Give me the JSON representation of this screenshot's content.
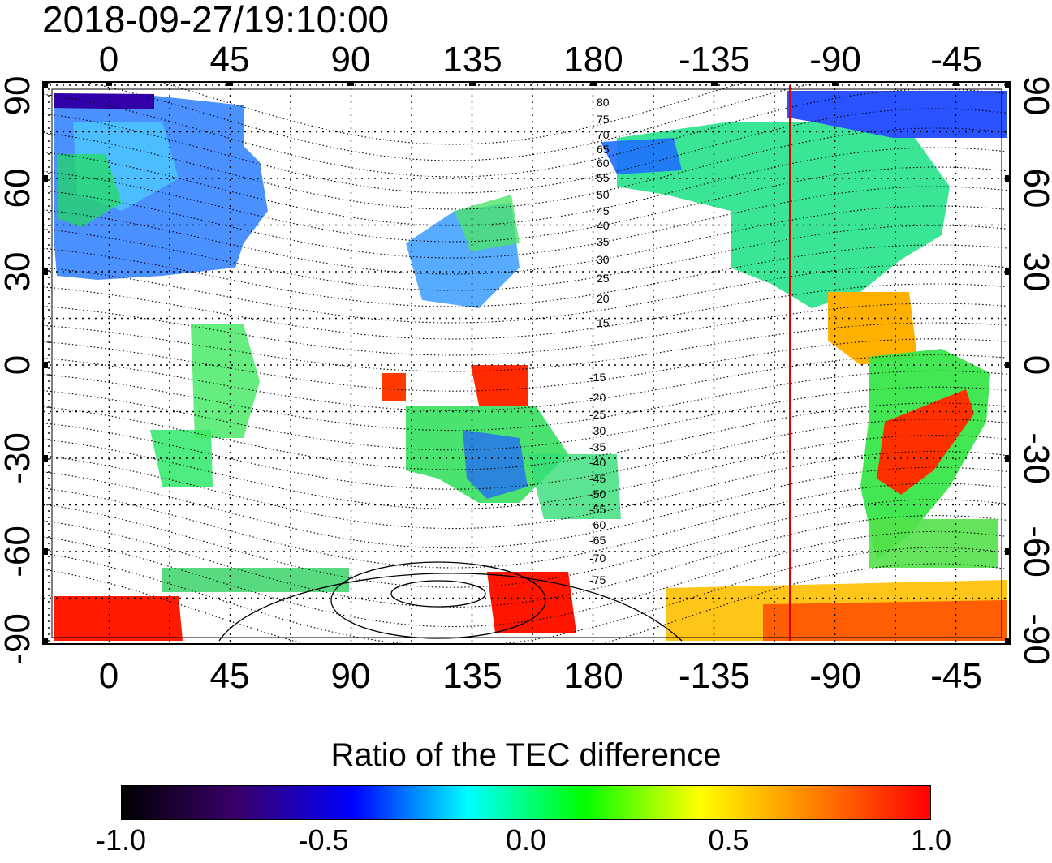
{
  "title": "2018-09-27/19:10:00",
  "map": {
    "lon_ticks": [
      "0",
      "45",
      "90",
      "135",
      "180",
      "-135",
      "-90",
      "-45"
    ],
    "lat_ticks": [
      "90",
      "60",
      "30",
      "0",
      "-30",
      "-60",
      "-90"
    ],
    "maglat_north_labels": [
      "80",
      "75",
      "70",
      "65",
      "60",
      "55",
      "50",
      "45",
      "40",
      "35",
      "30",
      "25",
      "20",
      "15"
    ],
    "maglat_south_labels": [
      "-15",
      "-20",
      "-25",
      "-30",
      "-35",
      "-40",
      "-45",
      "-50",
      "-55",
      "-60",
      "-65",
      "-70",
      "-75"
    ],
    "terminator_color": "#e00000",
    "grid": true
  },
  "colorbar": {
    "title": "Ratio of the TEC difference",
    "ticks": [
      "-1.0",
      "-0.5",
      "0.0",
      "0.5",
      "1.0"
    ],
    "range": [
      -1.0,
      1.0
    ],
    "colors": [
      "#000000",
      "#3a006a",
      "#0000ff",
      "#00ffff",
      "#00ff00",
      "#ffff00",
      "#ff8000",
      "#ff0000"
    ]
  }
}
